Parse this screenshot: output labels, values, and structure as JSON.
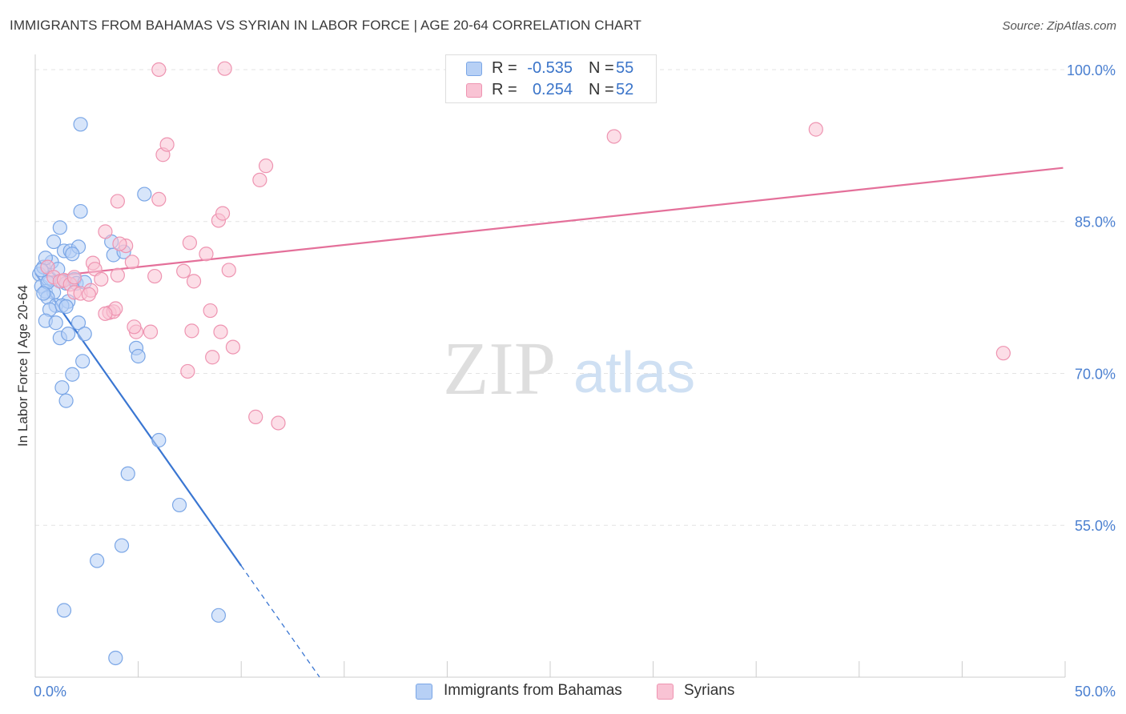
{
  "header": {
    "title": "IMMIGRANTS FROM BAHAMAS VS SYRIAN IN LABOR FORCE | AGE 20-64 CORRELATION CHART",
    "source": "Source: ZipAtlas.com"
  },
  "watermark": {
    "part1": "ZIP",
    "part2": "atlas"
  },
  "legend": {
    "rows": [
      {
        "r_label": "R =",
        "r_value": "-0.535",
        "n_label": "N =",
        "n_value": "55",
        "fill": "#b7d0f5",
        "stroke": "#7aa6e6"
      },
      {
        "r_label": "R =",
        "r_value": "0.254",
        "n_label": "N =",
        "n_value": "52",
        "fill": "#f9c3d4",
        "stroke": "#ee94b1"
      }
    ]
  },
  "bottom_legend": {
    "items": [
      {
        "label": "Immigrants from Bahamas",
        "fill": "#b7d0f5",
        "stroke": "#7aa6e6"
      },
      {
        "label": "Syrians",
        "fill": "#f9c3d4",
        "stroke": "#ee94b1"
      }
    ]
  },
  "chart_data": {
    "type": "scatter",
    "title": "IMMIGRANTS FROM BAHAMAS VS SYRIAN IN LABOR FORCE | AGE 20-64 CORRELATION CHART",
    "xlabel": "",
    "ylabel": "In Labor Force | Age 20-64",
    "xlim": [
      0,
      50
    ],
    "ylim": [
      40,
      101.5
    ],
    "x_tick_labels": [
      "0.0%",
      "50.0%"
    ],
    "y_ticks": [
      55,
      70,
      85,
      100
    ],
    "y_tick_labels": [
      "55.0%",
      "70.0%",
      "85.0%",
      "100.0%"
    ],
    "grid": true,
    "series": [
      {
        "name": "Immigrants from Bahamas",
        "color": "#7aa6e6",
        "fill": "#b7d0f5",
        "line_color": "#3a76d2",
        "r": -0.535,
        "n": 55,
        "trend": {
          "x0": 0,
          "y0": 79.9,
          "x1": 10,
          "y1": 51.0,
          "dash_to_x": 13.8
        },
        "points": [
          [
            0.2,
            79.8
          ],
          [
            0.4,
            80.5
          ],
          [
            0.3,
            78.6
          ],
          [
            0.5,
            78.1
          ],
          [
            0.7,
            79.4
          ],
          [
            0.9,
            78.0
          ],
          [
            0.6,
            77.5
          ],
          [
            0.8,
            81.0
          ],
          [
            1.1,
            80.3
          ],
          [
            1.3,
            79.1
          ],
          [
            1.0,
            76.7
          ],
          [
            0.7,
            76.3
          ],
          [
            0.5,
            81.4
          ],
          [
            1.5,
            78.9
          ],
          [
            1.6,
            77.1
          ],
          [
            1.9,
            79.3
          ],
          [
            2.0,
            78.9
          ],
          [
            1.4,
            82.1
          ],
          [
            1.7,
            82.1
          ],
          [
            2.1,
            82.5
          ],
          [
            0.9,
            83.0
          ],
          [
            1.2,
            84.4
          ],
          [
            1.3,
            76.7
          ],
          [
            1.5,
            76.6
          ],
          [
            0.5,
            75.2
          ],
          [
            1.0,
            75.0
          ],
          [
            2.1,
            75.0
          ],
          [
            1.2,
            73.5
          ],
          [
            1.6,
            73.9
          ],
          [
            2.4,
            73.9
          ],
          [
            1.3,
            68.6
          ],
          [
            1.8,
            69.9
          ],
          [
            1.5,
            67.3
          ],
          [
            2.3,
            71.2
          ],
          [
            2.2,
            86.0
          ],
          [
            2.2,
            94.6
          ],
          [
            3.8,
            81.7
          ],
          [
            3.7,
            83.0
          ],
          [
            4.3,
            82.0
          ],
          [
            4.9,
            72.5
          ],
          [
            5.0,
            71.7
          ],
          [
            5.3,
            87.7
          ],
          [
            6.0,
            63.4
          ],
          [
            4.5,
            60.1
          ],
          [
            7.0,
            57.0
          ],
          [
            4.2,
            53.0
          ],
          [
            3.0,
            51.5
          ],
          [
            1.4,
            46.6
          ],
          [
            8.9,
            46.1
          ],
          [
            3.9,
            41.9
          ],
          [
            0.3,
            80.2
          ],
          [
            0.6,
            79.0
          ],
          [
            1.8,
            81.8
          ],
          [
            0.4,
            77.9
          ],
          [
            2.4,
            79.0
          ]
        ]
      },
      {
        "name": "Syrians",
        "color": "#ee94b1",
        "fill": "#f9c3d4",
        "line_color": "#e4709a",
        "r": 0.254,
        "n": 52,
        "trend": {
          "x0": 0.4,
          "y0": 79.5,
          "x1": 49.9,
          "y1": 90.3
        },
        "points": [
          [
            0.6,
            80.5
          ],
          [
            0.9,
            79.5
          ],
          [
            1.2,
            79.1
          ],
          [
            1.4,
            79.2
          ],
          [
            1.7,
            78.8
          ],
          [
            1.9,
            78.0
          ],
          [
            1.9,
            79.5
          ],
          [
            2.2,
            77.9
          ],
          [
            2.7,
            78.2
          ],
          [
            2.6,
            77.8
          ],
          [
            2.8,
            80.9
          ],
          [
            2.9,
            80.3
          ],
          [
            3.4,
            84.0
          ],
          [
            3.6,
            76.0
          ],
          [
            3.8,
            76.1
          ],
          [
            3.9,
            76.4
          ],
          [
            3.4,
            75.9
          ],
          [
            3.2,
            79.3
          ],
          [
            4.0,
            79.7
          ],
          [
            4.4,
            82.6
          ],
          [
            4.1,
            82.8
          ],
          [
            4.7,
            81.0
          ],
          [
            4.9,
            74.1
          ],
          [
            4.8,
            74.6
          ],
          [
            5.6,
            74.1
          ],
          [
            5.8,
            79.6
          ],
          [
            6.2,
            91.6
          ],
          [
            6.4,
            92.6
          ],
          [
            6.0,
            87.2
          ],
          [
            4.0,
            87.0
          ],
          [
            7.2,
            80.1
          ],
          [
            7.5,
            82.9
          ],
          [
            7.7,
            79.1
          ],
          [
            7.6,
            74.2
          ],
          [
            8.3,
            81.8
          ],
          [
            8.9,
            85.1
          ],
          [
            9.1,
            85.8
          ],
          [
            9.0,
            74.1
          ],
          [
            8.6,
            71.6
          ],
          [
            9.4,
            80.2
          ],
          [
            9.6,
            72.6
          ],
          [
            10.9,
            89.1
          ],
          [
            11.2,
            90.5
          ],
          [
            10.7,
            65.7
          ],
          [
            11.8,
            65.1
          ],
          [
            7.4,
            70.2
          ],
          [
            8.5,
            76.2
          ],
          [
            6.0,
            100.0
          ],
          [
            9.2,
            100.1
          ],
          [
            28.1,
            93.4
          ],
          [
            37.9,
            94.1
          ],
          [
            47.0,
            72.0
          ]
        ]
      }
    ]
  }
}
